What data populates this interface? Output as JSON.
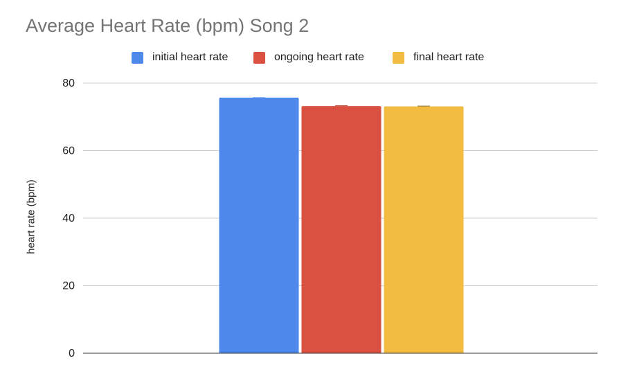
{
  "chart_data": {
    "type": "bar",
    "title": "Average Heart Rate (bpm) Song 2",
    "xlabel": "",
    "ylabel": "heart rate (bpm)",
    "ylim": [
      0,
      80
    ],
    "yticks": [
      0,
      20,
      40,
      60,
      80
    ],
    "categories": [
      ""
    ],
    "series": [
      {
        "name": "initial heart rate",
        "values": [
          75.7
        ],
        "color": "#4e88ea"
      },
      {
        "name": "ongoing heart rate",
        "values": [
          73.2
        ],
        "color": "#da5142"
      },
      {
        "name": "final heart rate",
        "values": [
          73.1
        ],
        "color": "#f2bc42"
      }
    ],
    "legend_position": "top",
    "grid": true
  }
}
